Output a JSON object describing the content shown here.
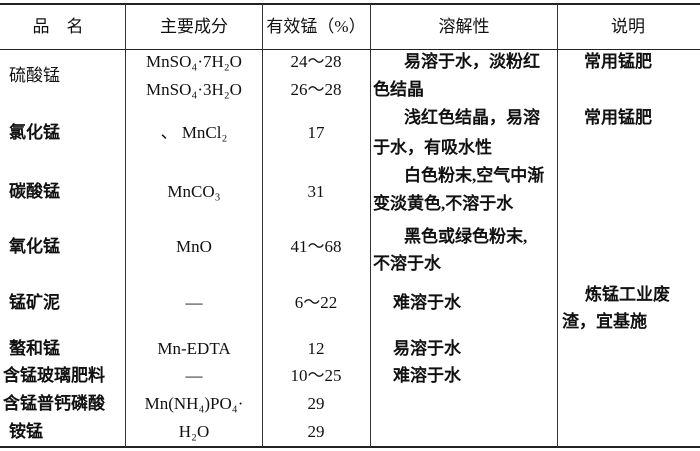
{
  "headers": [
    "品　名",
    "主要成分",
    "有效锰（%）",
    "溶解性",
    "说明"
  ],
  "rows": [
    {
      "name": "硫酸锰",
      "formula": [
        "MnSO₄·7H₂O",
        "MnSO₄·3H₂O"
      ],
      "mn": [
        "24～28",
        "26～28"
      ],
      "solubility": [
        "易溶于水，淡粉红",
        "色结晶"
      ],
      "note": "常用锰肥"
    },
    {
      "name": "氯化锰",
      "formula": [
        "、 MnCl₂"
      ],
      "mn": [
        "17"
      ],
      "solubility": [
        "浅红色结晶，易溶",
        "于水，有吸水性"
      ],
      "note": "常用锰肥"
    },
    {
      "name": "碳酸锰",
      "formula": [
        "MnCO₃"
      ],
      "mn": [
        "31"
      ],
      "solubility": [
        "白色粉末,空气中渐",
        "变淡黄色,不溶于水"
      ]
    },
    {
      "name": "氧化锰",
      "formula": [
        "MnO"
      ],
      "mn": [
        "41～68"
      ],
      "solubility": [
        "黑色或绿色粉末,",
        "不溶于水"
      ]
    },
    {
      "name": "锰矿泥",
      "formula": [
        "—"
      ],
      "mn": [
        "6～22"
      ],
      "solubility": [
        "难溶于水"
      ]
    },
    {
      "name": "螯和锰",
      "formula": [
        "Mn-EDTA"
      ],
      "mn": [
        "12"
      ],
      "solubility": [
        "易溶于水"
      ]
    },
    {
      "name": "含锰玻璃肥料",
      "formula": [
        "—"
      ],
      "mn": [
        "10～25"
      ],
      "solubility": [
        "难溶于水"
      ]
    },
    {
      "name": "含锰普钙磷酸",
      "formula": [
        "Mn(NH₄)PO₄·"
      ],
      "mn": [
        "29"
      ]
    },
    {
      "name": "铵锰",
      "formula": [
        "H₂O"
      ],
      "mn": [
        "29"
      ]
    }
  ],
  "shared_note": [
    "炼锰工业废",
    "渣，宜基施"
  ]
}
